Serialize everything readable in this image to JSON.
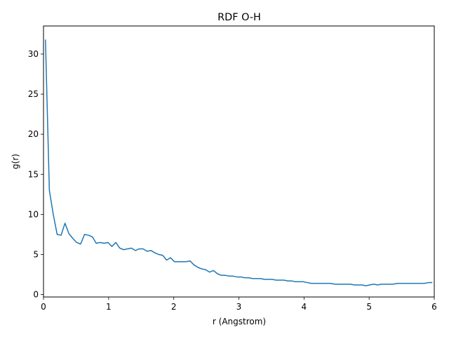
{
  "chart_data": {
    "type": "line",
    "title": "RDF O-H",
    "xlabel": "r (Angstrom)",
    "ylabel": "g(r)",
    "xlim": [
      0,
      6
    ],
    "ylim": [
      -0.3,
      33.5
    ],
    "xticks": [
      0,
      1,
      2,
      3,
      4,
      5,
      6
    ],
    "xtick_labels": [
      "0",
      "1",
      "2",
      "3",
      "4",
      "5",
      "6"
    ],
    "yticks": [
      0,
      5,
      10,
      15,
      20,
      25,
      30
    ],
    "ytick_labels": [
      "0",
      "5",
      "10",
      "15",
      "20",
      "25",
      "30"
    ],
    "grid": false,
    "legend": "none",
    "series": [
      {
        "color": "#1f77b4",
        "x": [
          0.03,
          0.09,
          0.15,
          0.21,
          0.27,
          0.33,
          0.39,
          0.45,
          0.51,
          0.57,
          0.63,
          0.69,
          0.75,
          0.81,
          0.87,
          0.93,
          0.99,
          1.05,
          1.11,
          1.17,
          1.23,
          1.29,
          1.35,
          1.41,
          1.47,
          1.53,
          1.59,
          1.65,
          1.71,
          1.77,
          1.83,
          1.89,
          1.95,
          2.01,
          2.07,
          2.13,
          2.19,
          2.25,
          2.31,
          2.37,
          2.43,
          2.49,
          2.55,
          2.61,
          2.67,
          2.73,
          2.79,
          2.85,
          2.91,
          2.97,
          3.03,
          3.09,
          3.15,
          3.21,
          3.27,
          3.33,
          3.39,
          3.45,
          3.51,
          3.57,
          3.63,
          3.69,
          3.75,
          3.81,
          3.87,
          3.93,
          3.99,
          4.05,
          4.11,
          4.17,
          4.23,
          4.29,
          4.35,
          4.41,
          4.47,
          4.53,
          4.59,
          4.65,
          4.71,
          4.77,
          4.83,
          4.89,
          4.95,
          5.01,
          5.07,
          5.13,
          5.19,
          5.25,
          5.31,
          5.37,
          5.43,
          5.49,
          5.55,
          5.61,
          5.67,
          5.73,
          5.79,
          5.85,
          5.91,
          5.97
        ],
        "values": [
          31.8,
          13.0,
          10.0,
          7.5,
          7.4,
          8.9,
          7.6,
          7.0,
          6.5,
          6.3,
          7.5,
          7.4,
          7.2,
          6.4,
          6.5,
          6.4,
          6.5,
          6.0,
          6.5,
          5.8,
          5.6,
          5.7,
          5.8,
          5.5,
          5.7,
          5.7,
          5.4,
          5.5,
          5.2,
          5.0,
          4.9,
          4.3,
          4.6,
          4.1,
          4.1,
          4.1,
          4.1,
          4.2,
          3.7,
          3.4,
          3.2,
          3.1,
          2.8,
          3.0,
          2.6,
          2.4,
          2.4,
          2.3,
          2.3,
          2.2,
          2.2,
          2.1,
          2.1,
          2.0,
          2.0,
          2.0,
          1.9,
          1.9,
          1.9,
          1.8,
          1.8,
          1.8,
          1.7,
          1.7,
          1.6,
          1.6,
          1.6,
          1.5,
          1.4,
          1.4,
          1.4,
          1.4,
          1.4,
          1.4,
          1.3,
          1.3,
          1.3,
          1.3,
          1.3,
          1.2,
          1.2,
          1.2,
          1.1,
          1.2,
          1.3,
          1.2,
          1.3,
          1.3,
          1.3,
          1.3,
          1.4,
          1.4,
          1.4,
          1.4,
          1.4,
          1.4,
          1.4,
          1.4,
          1.5,
          1.5
        ]
      }
    ]
  }
}
